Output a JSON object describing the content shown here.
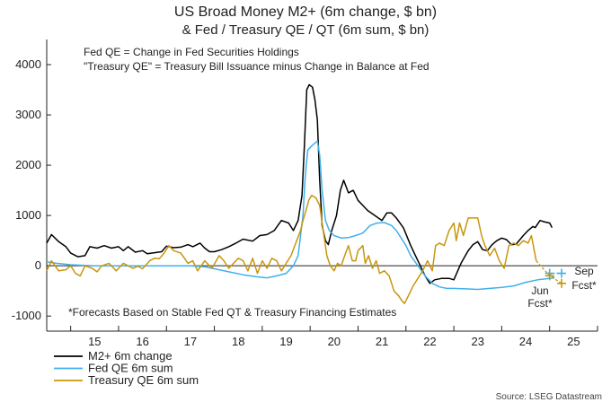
{
  "chart_data": {
    "type": "line",
    "title": "US Broad Money M2+ (6m change, $ bn)",
    "subtitle": "& Fed / Treasury QE / QT (6m sum, $ bn)",
    "notes": [
      "Fed QE = Change in Fed Securities Holdings",
      "\"Treasury QE\" = Treasury Bill Issuance minus Change in Balance at Fed"
    ],
    "footnote": "*Forecasts Based on Stable Fed QT & Treasury Financing Estimates",
    "source": "Source: LSEG Datastream",
    "xlabel": "",
    "ylabel": "",
    "ylim": [
      -1300,
      4500
    ],
    "xlim": [
      2014.5,
      2026.0
    ],
    "yticks": [
      -1000,
      0,
      1000,
      2000,
      3000,
      4000
    ],
    "ytick_labels": [
      "-1000",
      "0",
      "1000",
      "2000",
      "3000",
      "4000"
    ],
    "xticks": [
      {
        "label": "15",
        "x": 2015.5
      },
      {
        "label": "16",
        "x": 2016.5
      },
      {
        "label": "17",
        "x": 2017.5
      },
      {
        "label": "18",
        "x": 2018.5
      },
      {
        "label": "19",
        "x": 2019.5
      },
      {
        "label": "20",
        "x": 2020.5
      },
      {
        "label": "21",
        "x": 2021.5
      },
      {
        "label": "22",
        "x": 2022.5
      },
      {
        "label": "23",
        "x": 2023.5
      },
      {
        "label": "24",
        "x": 2024.5
      },
      {
        "label": "25",
        "x": 2025.5
      }
    ],
    "series": [
      {
        "name": "M2+ 6m change",
        "color": "#000000",
        "points": [
          [
            2014.5,
            450
          ],
          [
            2014.6,
            620
          ],
          [
            2014.75,
            480
          ],
          [
            2014.9,
            380
          ],
          [
            2015.0,
            250
          ],
          [
            2015.15,
            180
          ],
          [
            2015.3,
            200
          ],
          [
            2015.4,
            380
          ],
          [
            2015.55,
            350
          ],
          [
            2015.7,
            400
          ],
          [
            2015.85,
            350
          ],
          [
            2016.0,
            380
          ],
          [
            2016.1,
            300
          ],
          [
            2016.2,
            380
          ],
          [
            2016.35,
            270
          ],
          [
            2016.5,
            300
          ],
          [
            2016.6,
            240
          ],
          [
            2016.75,
            260
          ],
          [
            2016.9,
            280
          ],
          [
            2017.0,
            390
          ],
          [
            2017.15,
            360
          ],
          [
            2017.3,
            370
          ],
          [
            2017.45,
            420
          ],
          [
            2017.55,
            380
          ],
          [
            2017.7,
            450
          ],
          [
            2017.8,
            350
          ],
          [
            2017.9,
            280
          ],
          [
            2018.0,
            280
          ],
          [
            2018.15,
            320
          ],
          [
            2018.3,
            380
          ],
          [
            2018.45,
            450
          ],
          [
            2018.6,
            530
          ],
          [
            2018.8,
            490
          ],
          [
            2018.95,
            600
          ],
          [
            2019.1,
            620
          ],
          [
            2019.25,
            700
          ],
          [
            2019.4,
            900
          ],
          [
            2019.55,
            850
          ],
          [
            2019.65,
            700
          ],
          [
            2019.75,
            900
          ],
          [
            2019.83,
            1400
          ],
          [
            2019.88,
            2400
          ],
          [
            2019.93,
            3500
          ],
          [
            2019.98,
            3600
          ],
          [
            2020.05,
            3550
          ],
          [
            2020.1,
            3300
          ],
          [
            2020.15,
            2900
          ],
          [
            2020.2,
            1700
          ],
          [
            2020.25,
            800
          ],
          [
            2020.32,
            500
          ],
          [
            2020.38,
            420
          ],
          [
            2020.45,
            700
          ],
          [
            2020.55,
            1000
          ],
          [
            2020.63,
            1500
          ],
          [
            2020.7,
            1700
          ],
          [
            2020.8,
            1450
          ],
          [
            2020.9,
            1500
          ],
          [
            2021.0,
            1300
          ],
          [
            2021.1,
            1200
          ],
          [
            2021.2,
            1100
          ],
          [
            2021.35,
            1000
          ],
          [
            2021.5,
            900
          ],
          [
            2021.6,
            1050
          ],
          [
            2021.7,
            1050
          ],
          [
            2021.8,
            950
          ],
          [
            2021.95,
            750
          ],
          [
            2022.1,
            400
          ],
          [
            2022.2,
            200
          ],
          [
            2022.3,
            0
          ],
          [
            2022.4,
            -200
          ],
          [
            2022.5,
            -350
          ],
          [
            2022.6,
            -280
          ],
          [
            2022.75,
            -250
          ],
          [
            2022.9,
            -250
          ],
          [
            2023.0,
            -280
          ],
          [
            2023.15,
            50
          ],
          [
            2023.3,
            300
          ],
          [
            2023.4,
            420
          ],
          [
            2023.5,
            480
          ],
          [
            2023.6,
            320
          ],
          [
            2023.7,
            300
          ],
          [
            2023.8,
            420
          ],
          [
            2023.9,
            500
          ],
          [
            2024.0,
            550
          ],
          [
            2024.1,
            520
          ],
          [
            2024.2,
            420
          ],
          [
            2024.3,
            430
          ],
          [
            2024.45,
            600
          ],
          [
            2024.55,
            700
          ],
          [
            2024.65,
            780
          ],
          [
            2024.7,
            760
          ],
          [
            2024.8,
            900
          ],
          [
            2024.9,
            870
          ],
          [
            2025.0,
            850
          ],
          [
            2025.05,
            760
          ]
        ]
      },
      {
        "name": "Fed QE 6m sum",
        "color": "#3fb1ec",
        "points": [
          [
            2014.5,
            80
          ],
          [
            2014.7,
            50
          ],
          [
            2015.0,
            20
          ],
          [
            2015.5,
            0
          ],
          [
            2016.0,
            0
          ],
          [
            2016.5,
            0
          ],
          [
            2017.0,
            0
          ],
          [
            2017.5,
            0
          ],
          [
            2017.8,
            -20
          ],
          [
            2018.0,
            -60
          ],
          [
            2018.3,
            -120
          ],
          [
            2018.6,
            -180
          ],
          [
            2018.9,
            -220
          ],
          [
            2019.1,
            -240
          ],
          [
            2019.3,
            -200
          ],
          [
            2019.5,
            -150
          ],
          [
            2019.65,
            0
          ],
          [
            2019.75,
            200
          ],
          [
            2019.85,
            1000
          ],
          [
            2019.9,
            1800
          ],
          [
            2019.95,
            2300
          ],
          [
            2020.05,
            2400
          ],
          [
            2020.15,
            2480
          ],
          [
            2020.2,
            2200
          ],
          [
            2020.25,
            1500
          ],
          [
            2020.32,
            900
          ],
          [
            2020.4,
            700
          ],
          [
            2020.5,
            600
          ],
          [
            2020.65,
            550
          ],
          [
            2020.8,
            560
          ],
          [
            2020.95,
            600
          ],
          [
            2021.1,
            650
          ],
          [
            2021.25,
            800
          ],
          [
            2021.4,
            850
          ],
          [
            2021.55,
            860
          ],
          [
            2021.7,
            800
          ],
          [
            2021.8,
            700
          ],
          [
            2021.9,
            550
          ],
          [
            2022.0,
            400
          ],
          [
            2022.1,
            200
          ],
          [
            2022.25,
            0
          ],
          [
            2022.4,
            -200
          ],
          [
            2022.55,
            -350
          ],
          [
            2022.7,
            -420
          ],
          [
            2022.85,
            -450
          ],
          [
            2023.0,
            -450
          ],
          [
            2023.25,
            -460
          ],
          [
            2023.5,
            -470
          ],
          [
            2023.75,
            -450
          ],
          [
            2024.0,
            -430
          ],
          [
            2024.25,
            -400
          ],
          [
            2024.5,
            -330
          ],
          [
            2024.75,
            -280
          ],
          [
            2025.0,
            -250
          ],
          [
            2025.1,
            -240
          ]
        ]
      },
      {
        "name": "Treasury QE 6m sum",
        "color": "#c8960e",
        "points": [
          [
            2014.5,
            -100
          ],
          [
            2014.6,
            100
          ],
          [
            2014.75,
            -100
          ],
          [
            2014.9,
            -80
          ],
          [
            2015.0,
            0
          ],
          [
            2015.1,
            -150
          ],
          [
            2015.2,
            -200
          ],
          [
            2015.3,
            0
          ],
          [
            2015.45,
            -50
          ],
          [
            2015.55,
            -120
          ],
          [
            2015.65,
            0
          ],
          [
            2015.8,
            50
          ],
          [
            2015.95,
            -100
          ],
          [
            2016.1,
            50
          ],
          [
            2016.2,
            0
          ],
          [
            2016.3,
            -50
          ],
          [
            2016.4,
            -10
          ],
          [
            2016.5,
            -60
          ],
          [
            2016.65,
            100
          ],
          [
            2016.75,
            150
          ],
          [
            2016.85,
            140
          ],
          [
            2016.95,
            250
          ],
          [
            2017.05,
            400
          ],
          [
            2017.15,
            300
          ],
          [
            2017.3,
            250
          ],
          [
            2017.45,
            50
          ],
          [
            2017.55,
            100
          ],
          [
            2017.65,
            -100
          ],
          [
            2017.8,
            100
          ],
          [
            2017.95,
            -50
          ],
          [
            2018.1,
            200
          ],
          [
            2018.2,
            100
          ],
          [
            2018.3,
            -50
          ],
          [
            2018.4,
            50
          ],
          [
            2018.5,
            150
          ],
          [
            2018.6,
            100
          ],
          [
            2018.7,
            -100
          ],
          [
            2018.8,
            150
          ],
          [
            2018.9,
            -150
          ],
          [
            2019.0,
            100
          ],
          [
            2019.1,
            -50
          ],
          [
            2019.2,
            150
          ],
          [
            2019.3,
            100
          ],
          [
            2019.4,
            -100
          ],
          [
            2019.5,
            50
          ],
          [
            2019.6,
            200
          ],
          [
            2019.7,
            450
          ],
          [
            2019.8,
            700
          ],
          [
            2019.85,
            900
          ],
          [
            2019.9,
            1050
          ],
          [
            2019.97,
            1300
          ],
          [
            2020.03,
            1400
          ],
          [
            2020.12,
            1350
          ],
          [
            2020.2,
            1200
          ],
          [
            2020.28,
            650
          ],
          [
            2020.35,
            200
          ],
          [
            2020.42,
            0
          ],
          [
            2020.5,
            -100
          ],
          [
            2020.57,
            50
          ],
          [
            2020.65,
            0
          ],
          [
            2020.72,
            200
          ],
          [
            2020.8,
            400
          ],
          [
            2020.88,
            100
          ],
          [
            2020.95,
            100
          ],
          [
            2021.0,
            300
          ],
          [
            2021.1,
            400
          ],
          [
            2021.15,
            50
          ],
          [
            2021.22,
            200
          ],
          [
            2021.3,
            -50
          ],
          [
            2021.38,
            100
          ],
          [
            2021.45,
            -150
          ],
          [
            2021.55,
            -100
          ],
          [
            2021.65,
            -200
          ],
          [
            2021.75,
            -500
          ],
          [
            2021.85,
            -600
          ],
          [
            2021.92,
            -700
          ],
          [
            2021.97,
            -750
          ],
          [
            2022.05,
            -600
          ],
          [
            2022.15,
            -400
          ],
          [
            2022.25,
            -250
          ],
          [
            2022.35,
            -100
          ],
          [
            2022.45,
            100
          ],
          [
            2022.55,
            -100
          ],
          [
            2022.62,
            400
          ],
          [
            2022.7,
            450
          ],
          [
            2022.8,
            400
          ],
          [
            2022.9,
            700
          ],
          [
            2023.0,
            850
          ],
          [
            2023.05,
            500
          ],
          [
            2023.12,
            850
          ],
          [
            2023.2,
            600
          ],
          [
            2023.3,
            950
          ],
          [
            2023.4,
            950
          ],
          [
            2023.5,
            950
          ],
          [
            2023.58,
            600
          ],
          [
            2023.65,
            400
          ],
          [
            2023.75,
            200
          ],
          [
            2023.85,
            350
          ],
          [
            2023.95,
            100
          ],
          [
            2024.05,
            -50
          ],
          [
            2024.15,
            400
          ],
          [
            2024.25,
            450
          ],
          [
            2024.35,
            400
          ],
          [
            2024.45,
            500
          ],
          [
            2024.55,
            450
          ],
          [
            2024.62,
            600
          ],
          [
            2024.68,
            300
          ],
          [
            2024.72,
            100
          ]
        ]
      }
    ],
    "forecasts": [
      {
        "name": "Fed QE Jun Fcst",
        "color": "#3fb1ec",
        "x": 2025.0,
        "y": -150,
        "label": "Jun Fcst*"
      },
      {
        "name": "Fed QE Sep Fcst",
        "color": "#3fb1ec",
        "x": 2025.25,
        "y": -150,
        "label": "Sep Fcst*"
      },
      {
        "name": "Treasury QE Jun Fcst",
        "color": "#c8960e",
        "x": 2025.0,
        "y": -200,
        "label": "Jun Fcst*"
      },
      {
        "name": "Treasury QE Sep Fcst",
        "color": "#c8960e",
        "x": 2025.25,
        "y": -350,
        "label": "Sep Fcst*"
      }
    ],
    "annotations": {
      "jun": "Jun",
      "sep": "Sep",
      "fcst_left": "Fcst*",
      "fcst_right": "Fcst*"
    },
    "legend": {
      "position": "bottom-left",
      "entries": [
        "M2+ 6m change",
        "Fed QE 6m sum",
        "Treasury QE 6m sum"
      ]
    },
    "grid": false
  }
}
